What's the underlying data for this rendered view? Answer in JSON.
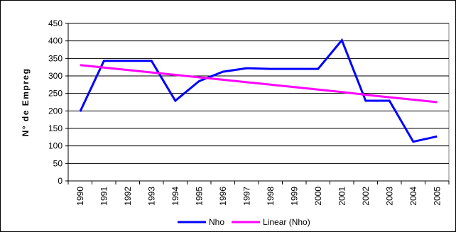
{
  "chart_data": {
    "type": "line",
    "title": "",
    "xlabel": "",
    "ylabel": "N° de Empreg",
    "categories": [
      "1990",
      "1991",
      "1992",
      "1993",
      "1994",
      "1995",
      "1996",
      "1997",
      "1998",
      "1999",
      "2000",
      "2001",
      "2002",
      "2003",
      "2004",
      "2005"
    ],
    "ylim": [
      0,
      450
    ],
    "yticks": [
      0,
      50,
      100,
      150,
      200,
      250,
      300,
      350,
      400,
      450
    ],
    "grid": true,
    "legend_position": "bottom",
    "series": [
      {
        "name": "Nho",
        "color": "#0000ff",
        "values": [
          198,
          343,
          343,
          343,
          229,
          285,
          312,
          322,
          320,
          320,
          320,
          402,
          229,
          229,
          112,
          127
        ]
      },
      {
        "name": "Linear (Nho)",
        "color": "#ff00ff",
        "values": [
          331,
          324,
          317,
          310,
          303,
          296,
          289,
          282,
          275,
          268,
          261,
          254,
          246,
          239,
          232,
          225
        ]
      }
    ]
  }
}
